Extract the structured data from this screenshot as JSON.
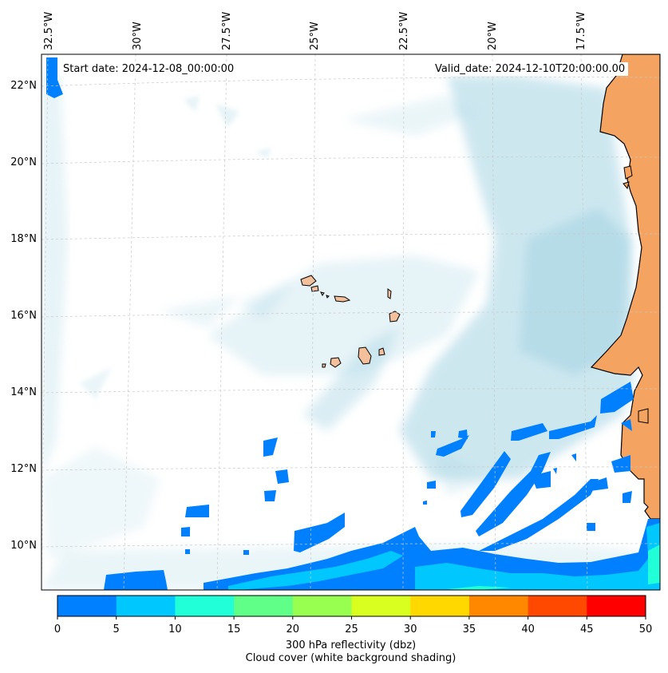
{
  "annotations": {
    "start_date": "Start date: 2024-12-08_00:00:00",
    "valid_date": "Valid_date: 2024-12-10T20:00:00.00"
  },
  "longitude_labels": [
    "32.5°W",
    "30°W",
    "27.5°W",
    "25°W",
    "22.5°W",
    "20°W",
    "17.5°W"
  ],
  "latitude_labels": [
    "22°N",
    "20°N",
    "18°N",
    "16°N",
    "14°N",
    "12°N",
    "10°N"
  ],
  "colorbar": {
    "ticks": [
      "0",
      "5",
      "10",
      "15",
      "20",
      "25",
      "30",
      "35",
      "40",
      "45",
      "50"
    ],
    "colors": [
      "#0080ff",
      "#00c8ff",
      "#20ffd8",
      "#60ff88",
      "#98ff50",
      "#d8ff20",
      "#ffd800",
      "#ff8800",
      "#ff4800",
      "#ff0000"
    ],
    "title_line1": "300 hPa reflectivity (dbz)",
    "title_line2": "Cloud cover (white background shading)"
  },
  "colors": {
    "land": "#f4a460",
    "cloud": "#add8e6",
    "reflectivity_low": "#0080ff",
    "reflectivity_mid": "#00c8ff",
    "reflectivity_high": "#20ffd8"
  }
}
